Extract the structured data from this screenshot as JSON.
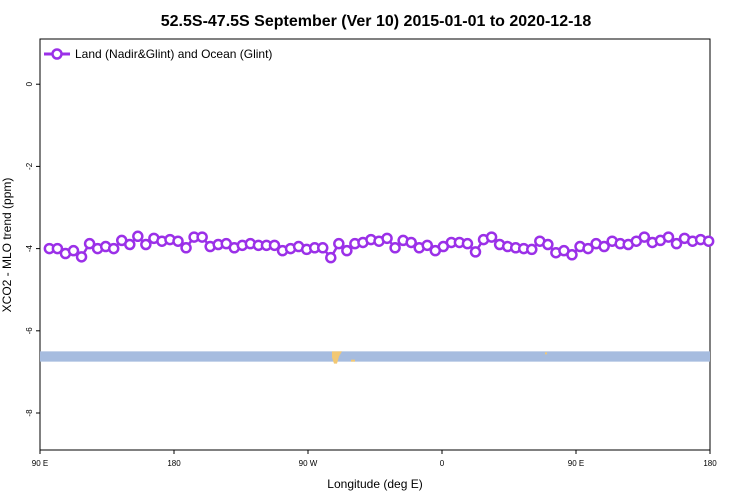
{
  "chart_data": {
    "type": "line",
    "title": "52.5S-47.5S September (Ver 10)   2015-01-01 to 2020-12-18",
    "xlabel": "Longitude (deg E)",
    "ylabel": "XCO2 - MLO trend (ppm)",
    "xlim": [
      90,
      590
    ],
    "ylim": [
      -8.9,
      1.1
    ],
    "x_ticks": [
      {
        "x": 90,
        "label": "90 E"
      },
      {
        "x": 190,
        "label": "180"
      },
      {
        "x": 290,
        "label": "90 W"
      },
      {
        "x": 390,
        "label": "0"
      },
      {
        "x": 490,
        "label": "90 E"
      },
      {
        "x": 590,
        "label": "180"
      }
    ],
    "y_ticks": [
      0,
      -2,
      -4,
      -6,
      -8
    ],
    "legend_position": "top-left",
    "series": [
      {
        "name": "Land (Nadir&Glint) and Ocean (Glint)",
        "color": "#9b30e8",
        "marker": "open-circle",
        "x": [
          97,
          103,
          109,
          115,
          121,
          127,
          133,
          139,
          145,
          151,
          157,
          163,
          169,
          175,
          181,
          187,
          193,
          199,
          205,
          211,
          217,
          223,
          229,
          235,
          241,
          247,
          253,
          259,
          265,
          271,
          277,
          283,
          289,
          295,
          301,
          307,
          313,
          319,
          325,
          331,
          337,
          343,
          349,
          355,
          361,
          367,
          373,
          379,
          385,
          391,
          397,
          403,
          409,
          415,
          421,
          427,
          433,
          439,
          445,
          451,
          457,
          463,
          469,
          475,
          481,
          487,
          493,
          499,
          505,
          511,
          517,
          523,
          529,
          535,
          541,
          547,
          553,
          559,
          565,
          571,
          577,
          583,
          589
        ],
        "y": [
          -4.0,
          -4.0,
          -4.12,
          -4.05,
          -4.2,
          -3.88,
          -4.0,
          -3.95,
          -4.0,
          -3.8,
          -3.9,
          -3.7,
          -3.9,
          -3.75,
          -3.82,
          -3.78,
          -3.82,
          -3.98,
          -3.72,
          -3.72,
          -3.95,
          -3.9,
          -3.88,
          -3.98,
          -3.92,
          -3.88,
          -3.92,
          -3.92,
          -3.92,
          -4.05,
          -4.0,
          -3.95,
          -4.02,
          -3.98,
          -3.98,
          -4.22,
          -3.88,
          -4.05,
          -3.88,
          -3.85,
          -3.78,
          -3.82,
          -3.75,
          -3.98,
          -3.8,
          -3.85,
          -3.98,
          -3.92,
          -4.05,
          -3.95,
          -3.85,
          -3.85,
          -3.88,
          -4.08,
          -3.78,
          -3.72,
          -3.9,
          -3.95,
          -3.98,
          -4.0,
          -4.02,
          -3.82,
          -3.9,
          -4.1,
          -4.05,
          -4.15,
          -3.95,
          -4.0,
          -3.88,
          -3.95,
          -3.82,
          -3.88,
          -3.9,
          -3.82,
          -3.72,
          -3.85,
          -3.8,
          -3.72,
          -3.88,
          -3.75,
          -3.82,
          -3.78,
          -3.82
        ]
      }
    ],
    "map_strip": {
      "y_range": [
        -6.75,
        -6.5
      ],
      "ocean_color": "#a6bcdf",
      "land_color": "#f2c873"
    },
    "colors": {
      "line": "#9b30e8",
      "ocean": "#a6bcdf",
      "land": "#f2c873"
    }
  }
}
